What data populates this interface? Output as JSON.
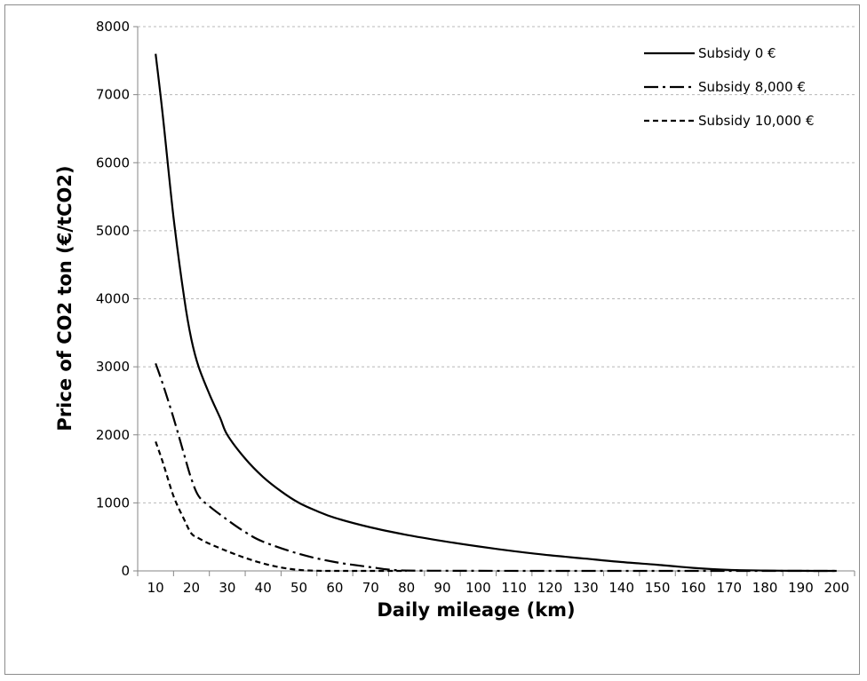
{
  "chart_data": {
    "type": "line",
    "title": "",
    "xlabel": "Daily mileage (km)",
    "ylabel": "Price of CO2 ton (€/tCO2)",
    "xlim": [
      5,
      205
    ],
    "ylim": [
      0,
      8000
    ],
    "x_ticks": [
      10,
      20,
      30,
      40,
      50,
      60,
      70,
      80,
      90,
      100,
      110,
      120,
      130,
      140,
      150,
      160,
      170,
      180,
      190,
      200
    ],
    "y_ticks": [
      0,
      1000,
      2000,
      3000,
      4000,
      5000,
      6000,
      7000,
      8000
    ],
    "grid": "horizontal",
    "legend_position": "top-right",
    "series": [
      {
        "name": "Subsidy 0 €",
        "style": "solid",
        "color": "#000000",
        "x": [
          10,
          12,
          15,
          18,
          20,
          22,
          25,
          28,
          30,
          35,
          40,
          45,
          50,
          55,
          60,
          70,
          80,
          90,
          100,
          110,
          120,
          130,
          140,
          150,
          160,
          170,
          180,
          190,
          200
        ],
        "y": [
          7600,
          6700,
          5200,
          4000,
          3400,
          3000,
          2600,
          2250,
          2000,
          1650,
          1380,
          1170,
          1000,
          880,
          780,
          640,
          530,
          440,
          360,
          290,
          230,
          180,
          130,
          90,
          45,
          15,
          5,
          1,
          0
        ]
      },
      {
        "name": "Subsidy 8,000 €",
        "style": "dash-dot",
        "color": "#000000",
        "x": [
          10,
          12,
          15,
          18,
          20,
          22,
          25,
          30,
          35,
          40,
          50,
          60,
          70,
          75,
          80,
          90,
          100,
          120,
          140,
          160,
          180,
          200
        ],
        "y": [
          3050,
          2750,
          2250,
          1700,
          1350,
          1100,
          950,
          750,
          570,
          430,
          250,
          130,
          55,
          20,
          5,
          2,
          1,
          0,
          0,
          0,
          0,
          0
        ]
      },
      {
        "name": "Subsidy 10,000 €",
        "style": "dashed",
        "color": "#000000",
        "x": [
          10,
          12,
          15,
          18,
          20,
          22,
          25,
          30,
          35,
          40,
          45,
          50,
          55,
          60,
          70,
          80
        ],
        "y": [
          1900,
          1600,
          1100,
          750,
          550,
          480,
          400,
          290,
          190,
          110,
          50,
          15,
          3,
          0,
          0,
          0
        ]
      }
    ]
  }
}
